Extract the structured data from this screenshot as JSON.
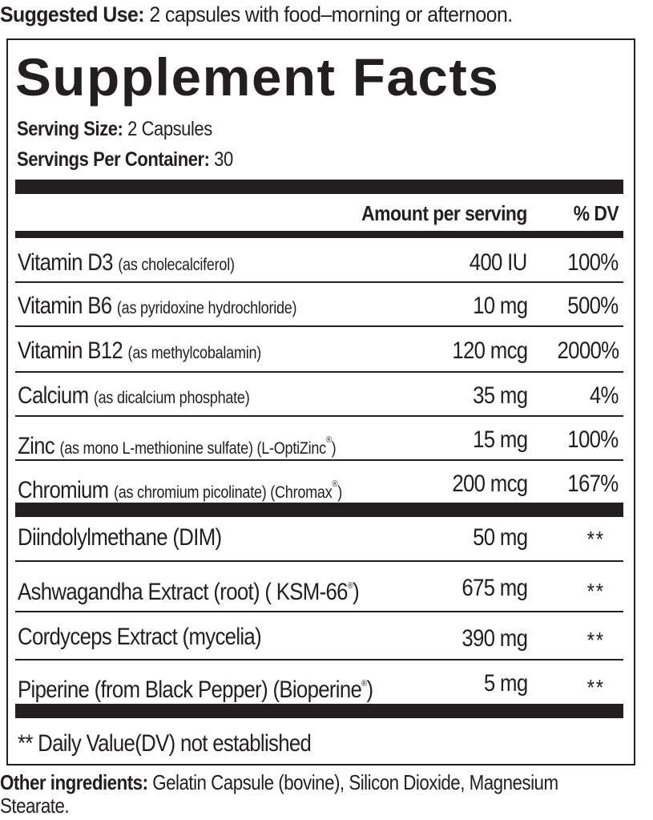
{
  "suggested_use": {
    "label": "Suggested Use:",
    "text": " 2 capsules with food–morning or afternoon."
  },
  "panel": {
    "title": "Supplement Facts",
    "serving_size_label": "Serving Size:",
    "serving_size_value": " 2 Capsules",
    "servings_per_container_label": "Servings Per Container:",
    "servings_per_container_value": " 30",
    "header_amount": "Amount per serving",
    "header_dv": "% DV",
    "vitamins": [
      {
        "name": "Vitamin D3",
        "qualifier": "(as cholecalciferol)",
        "amount": "400 IU",
        "dv": "100%"
      },
      {
        "name": "Vitamin B6",
        "qualifier": "(as pyridoxine hydrochloride)",
        "amount": "10 mg",
        "dv": "500%"
      },
      {
        "name": "Vitamin B12",
        "qualifier": "(as methylcobalamin)",
        "amount": "120 mcg",
        "dv": "2000%"
      },
      {
        "name": "Calcium",
        "qualifier": "(as dicalcium phosphate)",
        "amount": "35 mg",
        "dv": "4%"
      },
      {
        "name": "Zinc",
        "qualifier": "(as mono L-methionine sulfate) (L-OptiZinc",
        "reg": "®",
        "qualifier_end": ")",
        "amount": "15 mg",
        "dv": "100%"
      },
      {
        "name": "Chromium",
        "qualifier": "(as chromium picolinate) (Chromax",
        "reg": "®",
        "qualifier_end": ")",
        "amount": "200 mcg",
        "dv": "167%"
      }
    ],
    "other_actives": [
      {
        "name": "Diindolylmethane (DIM)",
        "amount": "50 mg",
        "dv": "**"
      },
      {
        "name": "Ashwagandha Extract (root) ( KSM-66",
        "reg": "®",
        "name_end": ")",
        "amount": "675 mg",
        "dv": "**"
      },
      {
        "name": "Cordyceps Extract (mycelia)",
        "amount": "390 mg",
        "dv": "**"
      },
      {
        "name": "Piperine (from Black Pepper) (Bioperine",
        "reg": "®",
        "name_end": ")",
        "amount": "5 mg",
        "dv": "**"
      }
    ],
    "footnote": "** Daily Value(DV) not established"
  },
  "other_ingredients": {
    "label": "Other ingredients:",
    "text": " Gelatin Capsule (bovine), Silicon Dioxide, Magnesium Stearate."
  }
}
